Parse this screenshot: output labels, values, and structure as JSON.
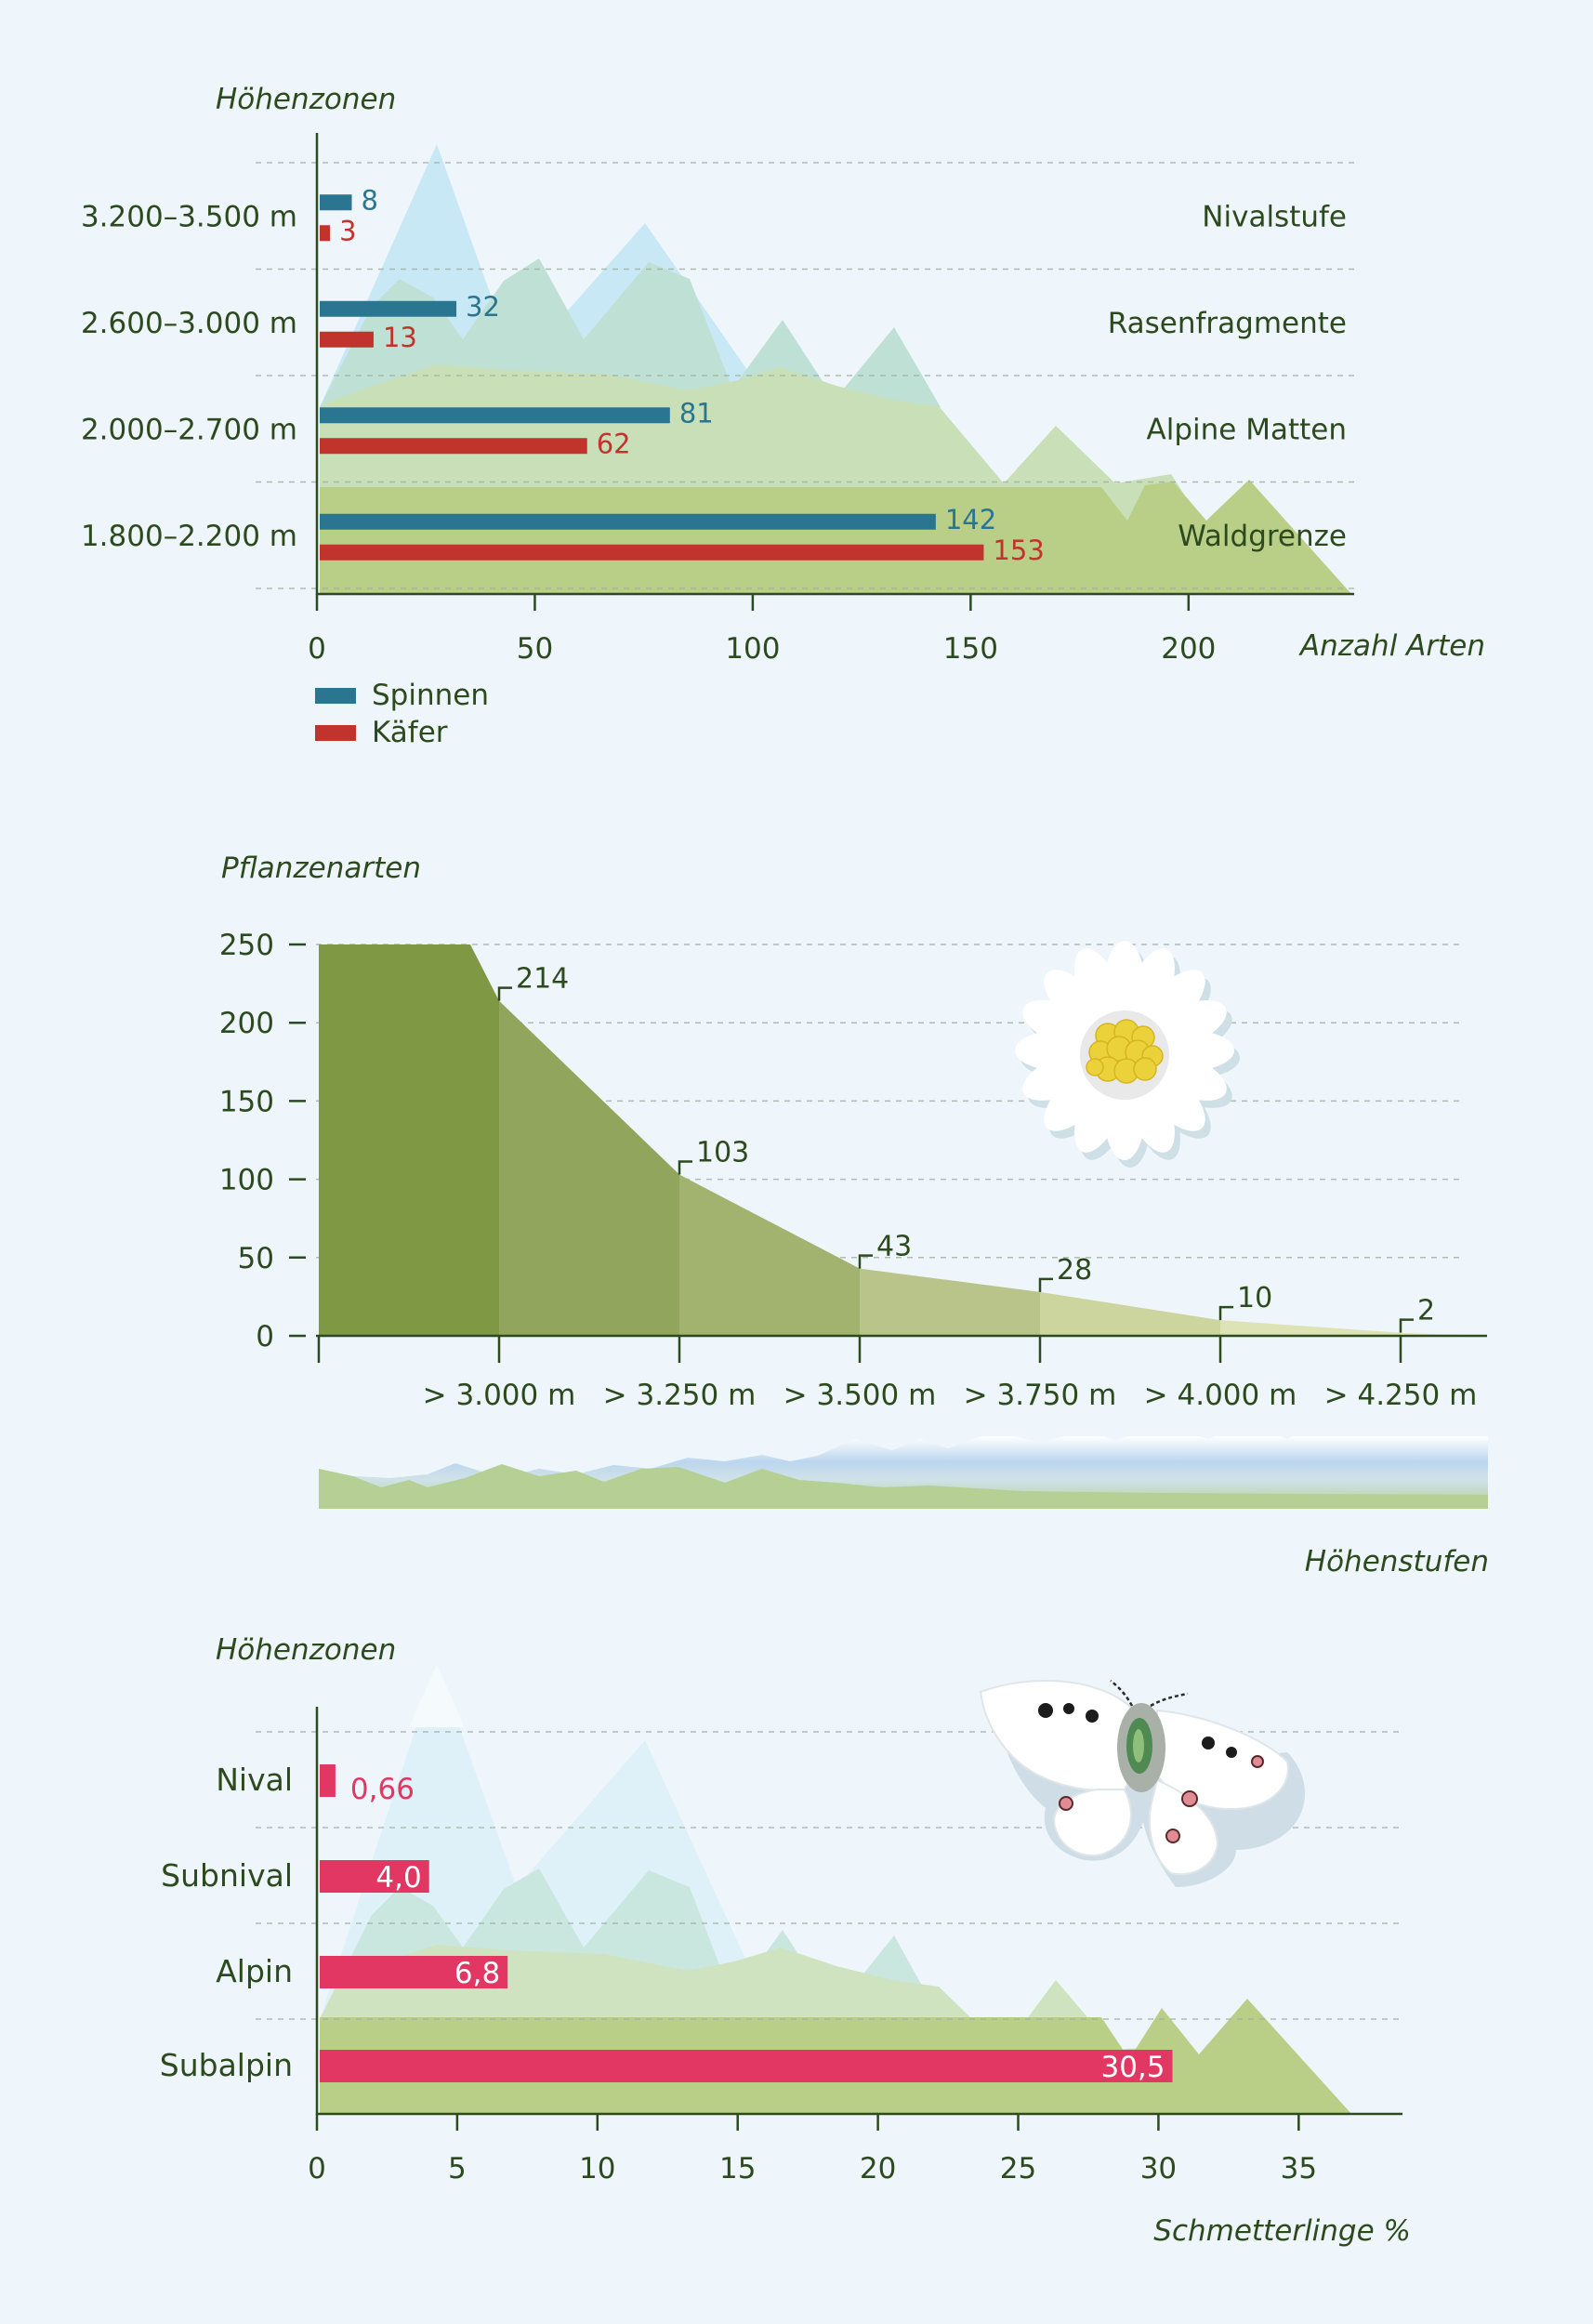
{
  "colors": {
    "text": "#2d4a1e",
    "axis": "#2d4a1e",
    "spinnen": "#2a7590",
    "kaefer": "#c1342e",
    "schmetterling": "#e33763",
    "sky_peak": "#c9e8f5",
    "mint": "#bfe0d4",
    "pale_green": "#c8dfb8",
    "olive": "#b9ce86",
    "plant_base": "#7f9843",
    "plant_fade": "#e6ebbc"
  },
  "chart_data": [
    {
      "type": "bar",
      "orientation": "horizontal",
      "ylabel": "Höhenzonen",
      "xlabel": "Anzahl Arten",
      "xlim": [
        0,
        238
      ],
      "xticks": [
        0,
        50,
        100,
        150,
        200
      ],
      "grid": true,
      "legend_position": "bottom-left",
      "categories": [
        "3.200–3.500 m",
        "2.600–3.000 m",
        "2.000–2.700 m",
        "1.800–2.200 m"
      ],
      "zones": [
        "Nivalstufe",
        "Rasenfragmente",
        "Alpine Matten",
        "Waldgrenze"
      ],
      "series": [
        {
          "name": "Spinnen",
          "values": [
            8,
            32,
            81,
            142
          ]
        },
        {
          "name": "Käfer",
          "values": [
            3,
            13,
            62,
            153
          ]
        }
      ]
    },
    {
      "type": "area",
      "ylabel": "Pflanzenarten",
      "xlabel": "Höhenstufen",
      "ylim": [
        0,
        250
      ],
      "yticks": [
        0,
        50,
        100,
        150,
        200,
        250
      ],
      "grid": true,
      "categories": [
        "> 3.000 m",
        "> 3.250 m",
        "> 3.500 m",
        "> 3.750 m",
        "> 4.000 m",
        "> 4.250 m"
      ],
      "values": [
        214,
        103,
        43,
        28,
        10,
        2
      ]
    },
    {
      "type": "bar",
      "orientation": "horizontal",
      "ylabel": "Höhenzonen",
      "xlabel": "Schmetterlinge %",
      "xlim": [
        0,
        38.7
      ],
      "xticks": [
        0,
        5,
        10,
        15,
        20,
        25,
        30,
        35
      ],
      "grid": true,
      "categories": [
        "Nival",
        "Subnival",
        "Alpin",
        "Subalpin"
      ],
      "values": [
        0.66,
        4.0,
        6.8,
        30.5
      ],
      "value_labels": [
        "0,66",
        "4,0",
        "6,8",
        "30,5"
      ]
    }
  ]
}
